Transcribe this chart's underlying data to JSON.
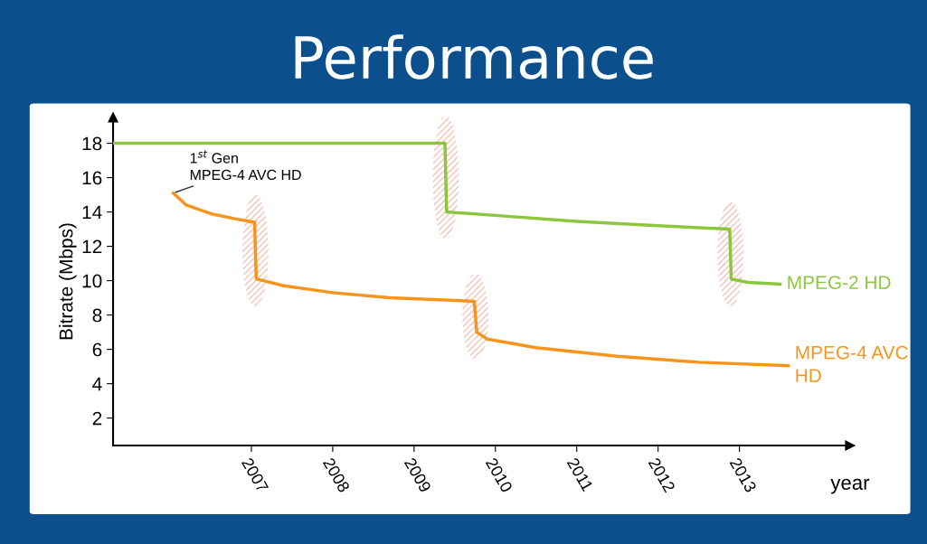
{
  "chart_data": {
    "type": "line",
    "title": "Performance",
    "xlabel": "year",
    "ylabel": "Bitrate (Mbps)",
    "series": [
      {
        "name": "MPEG-2 HD",
        "color": "#8cc63f",
        "x": [
          2005.3,
          2009.38,
          2009.4,
          2010,
          2011,
          2012,
          2012.88,
          2012.9,
          2013.1,
          2013.5
        ],
        "values": [
          18,
          18,
          14,
          13.8,
          13.45,
          13.2,
          13.0,
          10.1,
          9.9,
          9.8
        ]
      },
      {
        "name": "MPEG-4 AVC\nHD",
        "color": "#f7941d",
        "x": [
          2006.04,
          2006.2,
          2006.5,
          2006.8,
          2007.04,
          2007.06,
          2007.4,
          2008,
          2008.7,
          2009.74,
          2009.77,
          2009.9,
          2010.5,
          2011.5,
          2012.5,
          2013.6
        ],
        "values": [
          15.1,
          14.4,
          13.9,
          13.6,
          13.4,
          10.1,
          9.7,
          9.3,
          9.0,
          8.8,
          7.0,
          6.6,
          6.1,
          5.6,
          5.25,
          5.05
        ]
      }
    ],
    "annotations": [
      {
        "text": "1$^{st}$ Gen\nMPEG-4 AVC HD",
        "x": 2006.04,
        "y": 15.1
      }
    ],
    "xlim": [
      2005.3,
      2014.36
    ],
    "xticks": [
      2007,
      2008,
      2009,
      2010,
      2011,
      2012,
      2013
    ],
    "ylim": [
      0.4,
      19.5
    ],
    "yticks": [
      2,
      4,
      6,
      8,
      10,
      12,
      14,
      16,
      18
    ],
    "grid": false,
    "legend": false
  }
}
